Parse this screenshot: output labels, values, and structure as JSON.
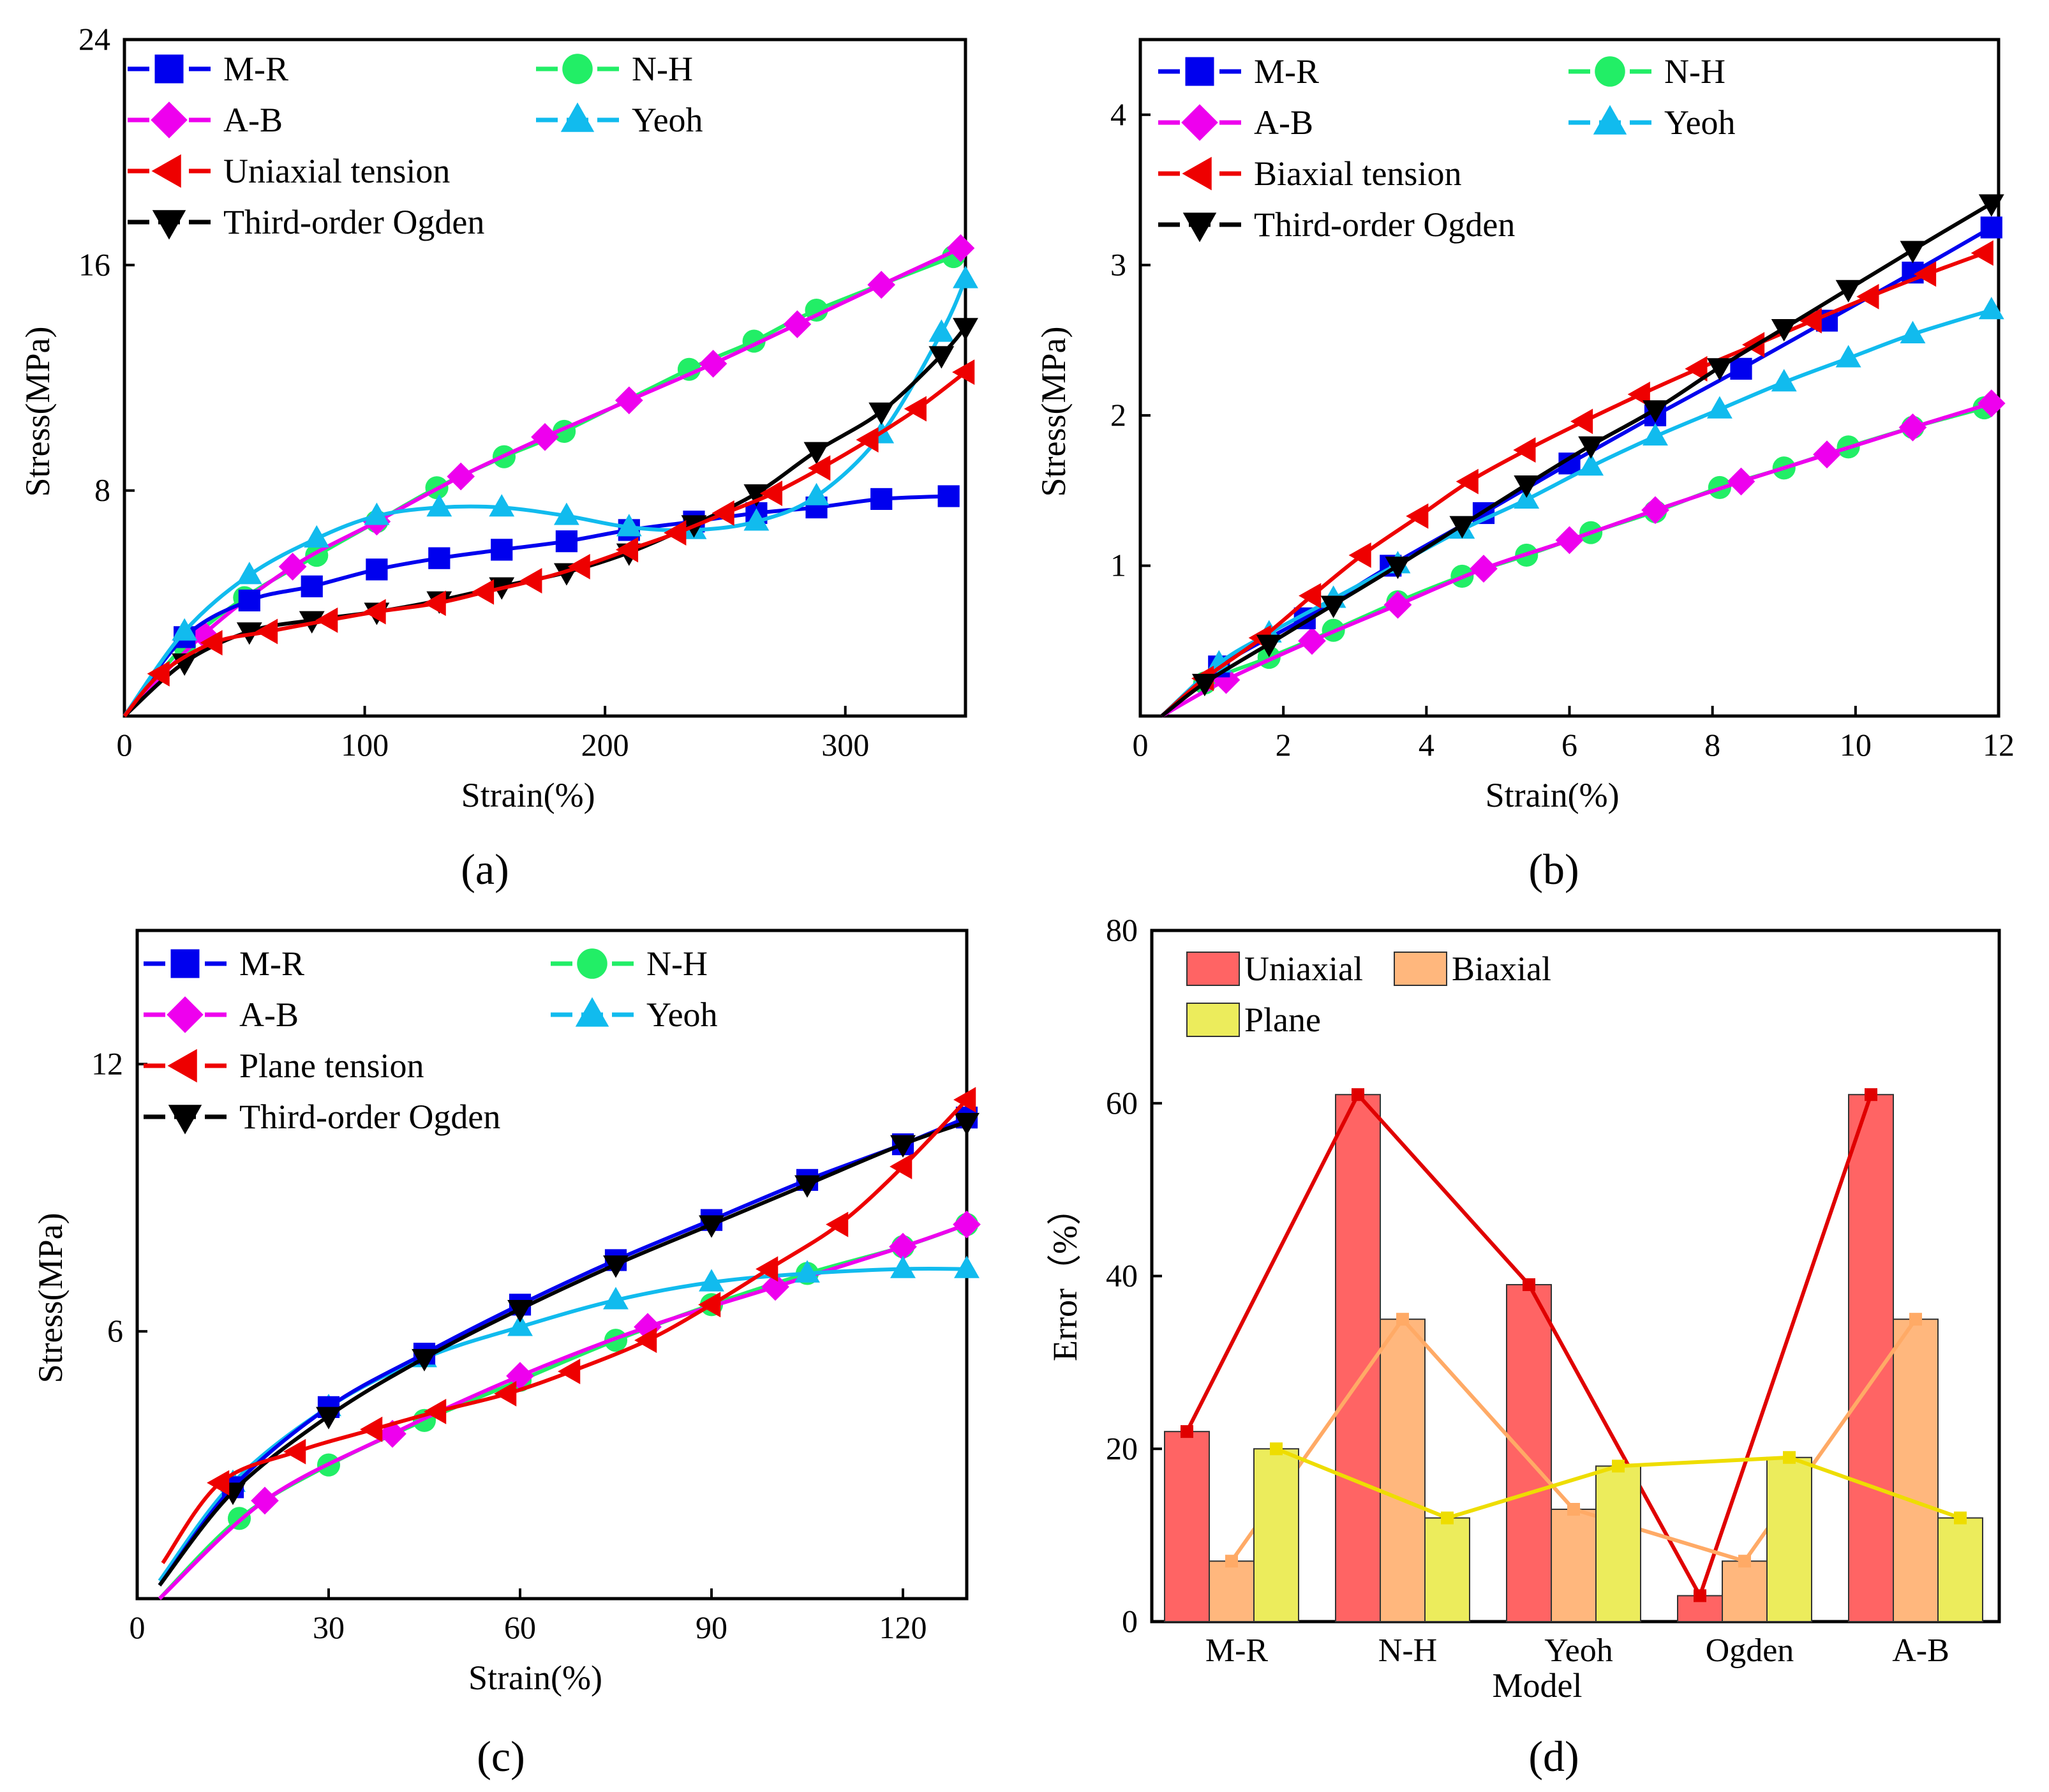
{
  "chart_data": [
    {
      "panel": "(a)",
      "type": "line",
      "xlabel": "Strain(%)",
      "ylabel": "Stress(MPa)",
      "xlim": [
        0,
        350
      ],
      "ylim": [
        0,
        24
      ],
      "xticks": [
        0,
        100,
        200,
        300
      ],
      "yticks": [
        8,
        16,
        24
      ],
      "legend": [
        {
          "name": "M-R",
          "color": "#0000ee",
          "marker": "square"
        },
        {
          "name": "N-H",
          "color": "#22ee66",
          "marker": "circle"
        },
        {
          "name": "A-B",
          "color": "#ee00ee",
          "marker": "diamond"
        },
        {
          "name": "Yeoh",
          "color": "#11bbee",
          "marker": "triangle-up"
        },
        {
          "name": "Uniaxial tension",
          "color": "#ee0000",
          "marker": "triangle-left"
        },
        {
          "name": "Third-order Ogden",
          "color": "#000000",
          "marker": "triangle-down"
        }
      ],
      "series": [
        {
          "name": "N-H",
          "x": [
            0,
            25,
            50,
            80,
            105,
            130,
            158,
            183,
            235,
            262,
            288,
            345
          ],
          "y": [
            0,
            2.5,
            4.2,
            5.7,
            6.9,
            8.1,
            9.2,
            10.1,
            12.3,
            13.3,
            14.4,
            16.3
          ]
        },
        {
          "name": "A-B",
          "x": [
            0,
            33,
            70,
            105,
            140,
            175,
            210,
            245,
            280,
            315,
            348
          ],
          "y": [
            0,
            2.9,
            5.3,
            6.9,
            8.5,
            9.9,
            11.2,
            12.5,
            13.9,
            15.3,
            16.6
          ]
        },
        {
          "name": "M-R",
          "x": [
            0,
            25,
            52,
            78,
            105,
            131,
            157,
            184,
            210,
            237,
            263,
            288,
            315,
            343
          ],
          "y": [
            0,
            2.8,
            4.1,
            4.6,
            5.2,
            5.6,
            5.9,
            6.2,
            6.6,
            6.9,
            7.2,
            7.4,
            7.7,
            7.8
          ]
        },
        {
          "name": "Yeoh",
          "x": [
            0,
            25,
            52,
            80,
            105,
            131,
            157,
            184,
            210,
            237,
            263,
            288,
            315,
            340,
            350
          ],
          "y": [
            0,
            3.0,
            5.0,
            6.3,
            7.1,
            7.4,
            7.4,
            7.1,
            6.7,
            6.6,
            6.9,
            7.8,
            10.0,
            13.6,
            15.5
          ]
        },
        {
          "name": "Third-order Ogden",
          "x": [
            0,
            25,
            52,
            78,
            105,
            131,
            157,
            184,
            210,
            237,
            263,
            288,
            315,
            340,
            350
          ],
          "y": [
            0,
            1.9,
            3.0,
            3.4,
            3.7,
            4.1,
            4.6,
            5.1,
            5.8,
            6.8,
            7.9,
            9.4,
            10.8,
            12.8,
            13.8
          ]
        },
        {
          "name": "Uniaxial tension",
          "x": [
            0,
            15,
            37,
            60,
            85,
            105,
            130,
            150,
            170,
            190,
            210,
            230,
            250,
            270,
            290,
            310,
            330,
            350
          ],
          "y": [
            0,
            1.5,
            2.6,
            3.0,
            3.4,
            3.7,
            4.0,
            4.4,
            4.8,
            5.3,
            5.9,
            6.5,
            7.2,
            7.9,
            8.8,
            9.8,
            10.9,
            12.2
          ]
        }
      ]
    },
    {
      "panel": "(b)",
      "type": "line",
      "xlabel": "Strain(%)",
      "ylabel": "Stress(MPa)",
      "xlim": [
        0,
        12
      ],
      "ylim": [
        0,
        4.5
      ],
      "xticks": [
        0,
        2,
        4,
        6,
        8,
        10,
        12
      ],
      "yticks": [
        1,
        2,
        3,
        4
      ],
      "legend": [
        {
          "name": "M-R",
          "color": "#0000ee",
          "marker": "square"
        },
        {
          "name": "N-H",
          "color": "#22ee66",
          "marker": "circle"
        },
        {
          "name": "A-B",
          "color": "#ee00ee",
          "marker": "diamond"
        },
        {
          "name": "Yeoh",
          "color": "#11bbee",
          "marker": "triangle-up"
        },
        {
          "name": "Biaxial tension",
          "color": "#ee0000",
          "marker": "triangle-left"
        },
        {
          "name": "Third-order Ogden",
          "color": "#000000",
          "marker": "triangle-down"
        }
      ],
      "series": [
        {
          "name": "N-H",
          "x": [
            0.3,
            0.9,
            1.8,
            2.7,
            3.6,
            4.5,
            5.4,
            6.3,
            7.2,
            8.1,
            9.0,
            9.9,
            10.8,
            11.8
          ],
          "y": [
            0,
            0.22,
            0.39,
            0.57,
            0.76,
            0.93,
            1.07,
            1.22,
            1.36,
            1.52,
            1.65,
            1.79,
            1.92,
            2.05
          ]
        },
        {
          "name": "A-B",
          "x": [
            0.3,
            1.2,
            2.4,
            3.6,
            4.8,
            6.0,
            7.2,
            8.4,
            9.6,
            10.8,
            11.9
          ],
          "y": [
            0,
            0.24,
            0.5,
            0.74,
            0.98,
            1.17,
            1.37,
            1.56,
            1.74,
            1.92,
            2.08
          ]
        },
        {
          "name": "M-R",
          "x": [
            0.3,
            1.1,
            2.3,
            3.5,
            4.8,
            6.0,
            7.2,
            8.4,
            9.6,
            10.8,
            11.9
          ],
          "y": [
            0,
            0.33,
            0.65,
            1.0,
            1.35,
            1.68,
            2.0,
            2.31,
            2.63,
            2.95,
            3.25
          ]
        },
        {
          "name": "Yeoh",
          "x": [
            0.3,
            1.1,
            1.8,
            2.7,
            3.6,
            4.5,
            5.4,
            6.3,
            7.2,
            8.1,
            9.0,
            9.9,
            10.8,
            11.9
          ],
          "y": [
            0,
            0.35,
            0.55,
            0.78,
            1.01,
            1.24,
            1.44,
            1.66,
            1.86,
            2.04,
            2.22,
            2.38,
            2.54,
            2.7
          ]
        },
        {
          "name": "Biaxial tension",
          "x": [
            0.3,
            0.9,
            1.7,
            2.4,
            3.1,
            3.9,
            4.6,
            5.4,
            6.2,
            7.0,
            7.8,
            8.6,
            9.4,
            10.2,
            11.0,
            11.8
          ],
          "y": [
            0,
            0.25,
            0.52,
            0.8,
            1.07,
            1.33,
            1.56,
            1.77,
            1.96,
            2.14,
            2.31,
            2.47,
            2.63,
            2.79,
            2.94,
            3.08
          ]
        },
        {
          "name": "Third-order Ogden",
          "x": [
            0.3,
            0.9,
            1.8,
            2.7,
            3.6,
            4.5,
            5.4,
            6.3,
            7.2,
            8.1,
            9.0,
            9.9,
            10.8,
            11.9
          ],
          "y": [
            0,
            0.22,
            0.48,
            0.74,
            1.0,
            1.27,
            1.54,
            1.8,
            2.04,
            2.32,
            2.58,
            2.84,
            3.1,
            3.41
          ]
        }
      ]
    },
    {
      "panel": "(c)",
      "type": "line",
      "xlabel": "Strain(%)",
      "ylabel": "Stress(MPa)",
      "xlim": [
        0,
        130
      ],
      "ylim": [
        0,
        15
      ],
      "xticks": [
        0,
        30,
        60,
        90,
        120
      ],
      "yticks": [
        6,
        12
      ],
      "legend": [
        {
          "name": "M-R",
          "color": "#0000ee",
          "marker": "square"
        },
        {
          "name": "N-H",
          "color": "#22ee66",
          "marker": "circle"
        },
        {
          "name": "A-B",
          "color": "#ee00ee",
          "marker": "diamond"
        },
        {
          "name": "Yeoh",
          "color": "#11bbee",
          "marker": "triangle-up"
        },
        {
          "name": "Plane tension",
          "color": "#ee0000",
          "marker": "triangle-left"
        },
        {
          "name": "Third-order Ogden",
          "color": "#000000",
          "marker": "triangle-down"
        }
      ],
      "series": [
        {
          "name": "N-H",
          "x": [
            3.5,
            16,
            30,
            45,
            60,
            75,
            90,
            105,
            120,
            130
          ],
          "y": [
            0,
            1.8,
            3.0,
            4.0,
            4.9,
            5.8,
            6.6,
            7.3,
            7.9,
            8.4
          ]
        },
        {
          "name": "A-B",
          "x": [
            3.5,
            20,
            40,
            60,
            80,
            100,
            120,
            130
          ],
          "y": [
            0,
            2.2,
            3.7,
            5.0,
            6.1,
            7.0,
            7.9,
            8.4
          ]
        },
        {
          "name": "Yeoh",
          "x": [
            3.5,
            15,
            30,
            45,
            60,
            75,
            90,
            105,
            120,
            130
          ],
          "y": [
            0.4,
            2.6,
            4.3,
            5.4,
            6.1,
            6.7,
            7.1,
            7.3,
            7.4,
            7.4
          ]
        },
        {
          "name": "M-R",
          "x": [
            3.5,
            15,
            30,
            45,
            60,
            75,
            90,
            105,
            120,
            130
          ],
          "y": [
            0.3,
            2.5,
            4.3,
            5.5,
            6.6,
            7.6,
            8.5,
            9.4,
            10.2,
            10.8
          ]
        },
        {
          "name": "Third-order Ogden",
          "x": [
            3.5,
            15,
            30,
            45,
            60,
            75,
            90,
            105,
            120,
            130
          ],
          "y": [
            0.3,
            2.4,
            4.1,
            5.4,
            6.5,
            7.5,
            8.4,
            9.3,
            10.2,
            10.7
          ]
        },
        {
          "name": "Plane tension",
          "x": [
            4,
            13,
            25,
            37,
            47,
            58,
            68,
            80,
            90,
            99,
            110,
            120,
            130
          ],
          "y": [
            0.8,
            2.6,
            3.3,
            3.8,
            4.2,
            4.6,
            5.1,
            5.8,
            6.6,
            7.4,
            8.4,
            9.7,
            11.2
          ]
        }
      ]
    },
    {
      "panel": "(d)",
      "type": "bar",
      "xlabel": "Model",
      "ylabel": "Error（%）",
      "ylim": [
        0,
        80
      ],
      "yticks": [
        0,
        20,
        40,
        60,
        80
      ],
      "categories": [
        "M-R",
        "N-H",
        "Yeoh",
        "Ogden",
        "A-B"
      ],
      "series": [
        {
          "name": "Uniaxial",
          "values": [
            22,
            61,
            39,
            3,
            61
          ],
          "color": "#ff6464",
          "line_color": "#e00000"
        },
        {
          "name": "Biaxial",
          "values": [
            7,
            35,
            13,
            7,
            35
          ],
          "color": "#ffb77d",
          "line_color": "#ffaa66"
        },
        {
          "name": "Plane",
          "values": [
            20,
            12,
            18,
            19,
            12
          ],
          "color": "#ecec5c",
          "line_color": "#eedd00"
        }
      ]
    }
  ]
}
